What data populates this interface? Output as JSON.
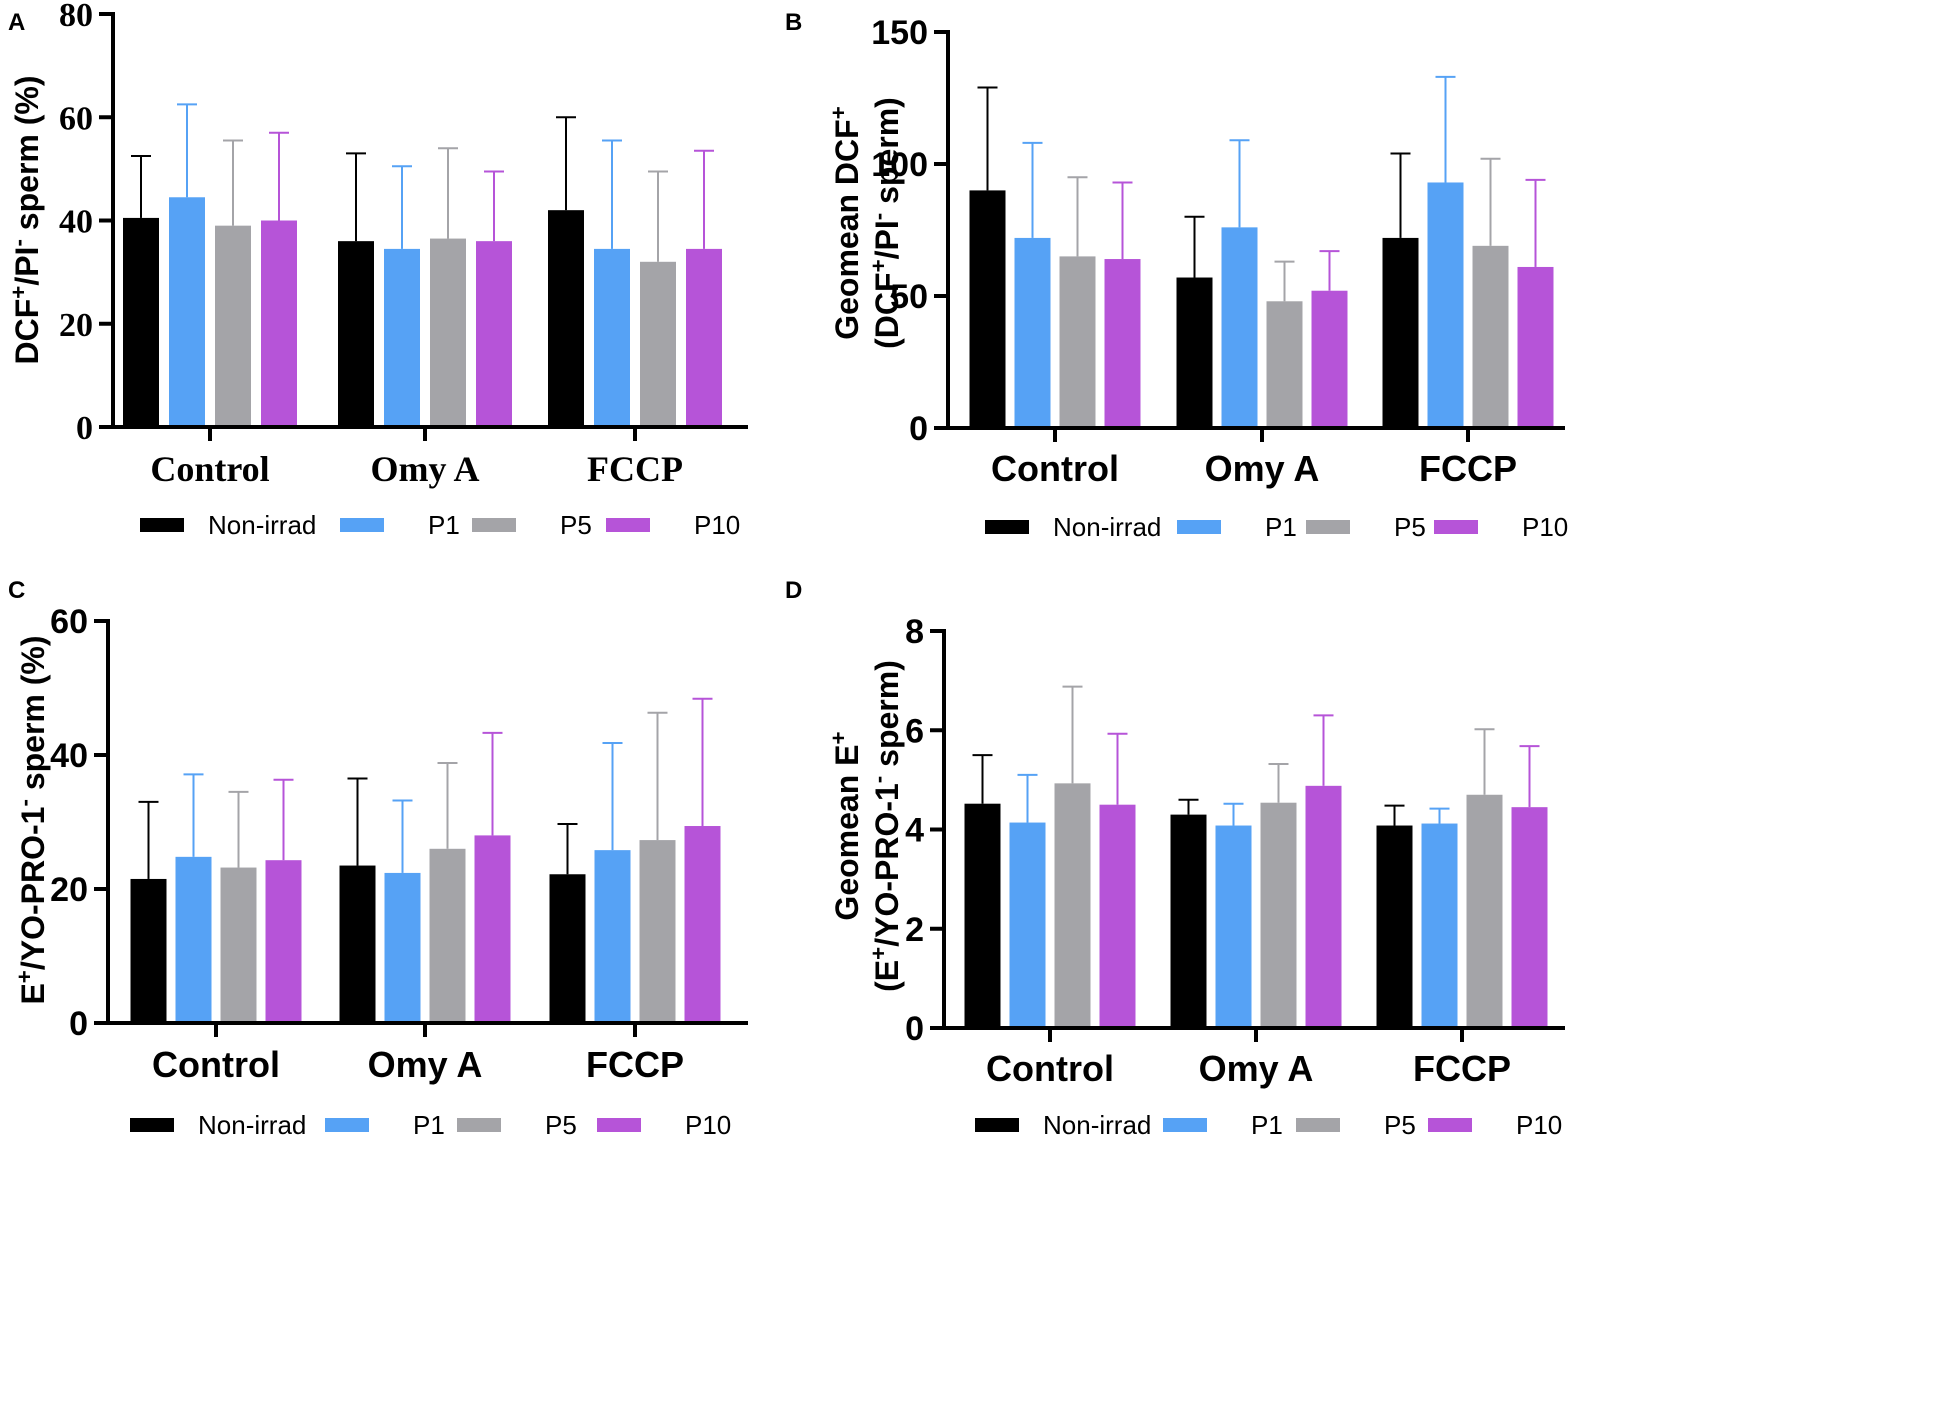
{
  "figure": {
    "legend_labels": [
      "Non-irrad",
      "P1",
      "P5",
      "P10"
    ]
  },
  "colors": {
    "Non-irrad": "#000000",
    "P1": "#56a2f5",
    "P5": "#a4a4a8",
    "P10": "#b654d8",
    "axis": "#000000"
  },
  "chart_data": [
    {
      "panel": "A",
      "type": "bar",
      "title": "",
      "ylabel": "DCF⁺/PI⁻ sperm (%)",
      "ylabel_parts": [
        {
          "t": "DCF"
        },
        {
          "t": "+",
          "sup": true
        },
        {
          "t": "/PI"
        },
        {
          "t": "-",
          "sup": true
        },
        {
          "t": " sperm (%)"
        }
      ],
      "xlabel": "",
      "categories": [
        "Control",
        "Omy A",
        "FCCP"
      ],
      "ylim": [
        0,
        80
      ],
      "yticks": [
        0,
        20,
        40,
        60,
        80
      ],
      "series": [
        {
          "name": "Non-irrad",
          "values": [
            40.5,
            36.0,
            42.0
          ],
          "errors": [
            12.0,
            17.0,
            18.0
          ]
        },
        {
          "name": "P1",
          "values": [
            44.5,
            34.5,
            34.5
          ],
          "errors": [
            18.0,
            16.0,
            21.0
          ]
        },
        {
          "name": "P5",
          "values": [
            39.0,
            36.5,
            32.0
          ],
          "errors": [
            16.5,
            17.5,
            17.5
          ]
        },
        {
          "name": "P10",
          "values": [
            40.0,
            36.0,
            34.5
          ],
          "errors": [
            17.0,
            13.5,
            19.0
          ]
        }
      ]
    },
    {
      "panel": "B",
      "type": "bar",
      "title": "",
      "ylabel": "Geomean DCF⁺ (DCF⁺/PI⁻ sperm)",
      "ylabel_lines": [
        [
          {
            "t": "Geomean DCF"
          },
          {
            "t": "+",
            "sup": true
          }
        ],
        [
          {
            "t": "(DCF"
          },
          {
            "t": "+",
            "sup": true
          },
          {
            "t": "/PI"
          },
          {
            "t": "-",
            "sup": true
          },
          {
            "t": " sperm)"
          }
        ]
      ],
      "xlabel": "",
      "categories": [
        "Control",
        "Omy A",
        "FCCP"
      ],
      "ylim": [
        0,
        150
      ],
      "yticks": [
        0,
        50,
        100,
        150
      ],
      "series": [
        {
          "name": "Non-irrad",
          "values": [
            90.0,
            57.0,
            72.0
          ],
          "errors": [
            39.0,
            23.0,
            32.0
          ]
        },
        {
          "name": "P1",
          "values": [
            72.0,
            76.0,
            93.0
          ],
          "errors": [
            36.0,
            33.0,
            40.0
          ]
        },
        {
          "name": "P5",
          "values": [
            65.0,
            48.0,
            69.0
          ],
          "errors": [
            30.0,
            15.0,
            33.0
          ]
        },
        {
          "name": "P10",
          "values": [
            64.0,
            52.0,
            61.0
          ],
          "errors": [
            29.0,
            15.0,
            33.0
          ]
        }
      ]
    },
    {
      "panel": "C",
      "type": "bar",
      "title": "",
      "ylabel": "E⁺/YO-PRO-1⁻ sperm (%)",
      "ylabel_parts": [
        {
          "t": "E"
        },
        {
          "t": "+",
          "sup": true
        },
        {
          "t": "/YO-PRO-1"
        },
        {
          "t": "-",
          "sup": true
        },
        {
          "t": " sperm (%)"
        }
      ],
      "xlabel": "",
      "categories": [
        "Control",
        "Omy A",
        "FCCP"
      ],
      "ylim": [
        0,
        60
      ],
      "yticks": [
        0,
        20,
        40,
        60
      ],
      "series": [
        {
          "name": "Non-irrad",
          "values": [
            21.5,
            23.5,
            22.2
          ],
          "errors": [
            11.5,
            13.0,
            7.5
          ]
        },
        {
          "name": "P1",
          "values": [
            24.8,
            22.4,
            25.8
          ],
          "errors": [
            12.3,
            10.8,
            16.0
          ]
        },
        {
          "name": "P5",
          "values": [
            23.2,
            26.0,
            27.3
          ],
          "errors": [
            11.3,
            12.8,
            19.0
          ]
        },
        {
          "name": "P10",
          "values": [
            24.3,
            28.0,
            29.4
          ],
          "errors": [
            12.0,
            15.3,
            19.0
          ]
        }
      ]
    },
    {
      "panel": "D",
      "type": "bar",
      "title": "",
      "ylabel": "Geomean E⁺ (E⁺/YO-PRO-1⁻ sperm)",
      "ylabel_lines": [
        [
          {
            "t": "Geomean E"
          },
          {
            "t": "+",
            "sup": true
          }
        ],
        [
          {
            "t": "(E"
          },
          {
            "t": "+",
            "sup": true
          },
          {
            "t": "/YO-PRO-1"
          },
          {
            "t": "-",
            "sup": true
          },
          {
            "t": " sperm)"
          }
        ]
      ],
      "xlabel": "",
      "categories": [
        "Control",
        "Omy A",
        "FCCP"
      ],
      "ylim": [
        0,
        8
      ],
      "yticks": [
        0,
        2,
        4,
        6,
        8
      ],
      "series": [
        {
          "name": "Non-irrad",
          "values": [
            4.52,
            4.3,
            4.08
          ],
          "errors": [
            0.98,
            0.3,
            0.4
          ]
        },
        {
          "name": "P1",
          "values": [
            4.14,
            4.08,
            4.12
          ],
          "errors": [
            0.96,
            0.44,
            0.3
          ]
        },
        {
          "name": "P5",
          "values": [
            4.93,
            4.54,
            4.7
          ],
          "errors": [
            1.95,
            0.78,
            1.32
          ]
        },
        {
          "name": "P10",
          "values": [
            4.5,
            4.88,
            4.45
          ],
          "errors": [
            1.43,
            1.42,
            1.23
          ]
        }
      ]
    }
  ]
}
